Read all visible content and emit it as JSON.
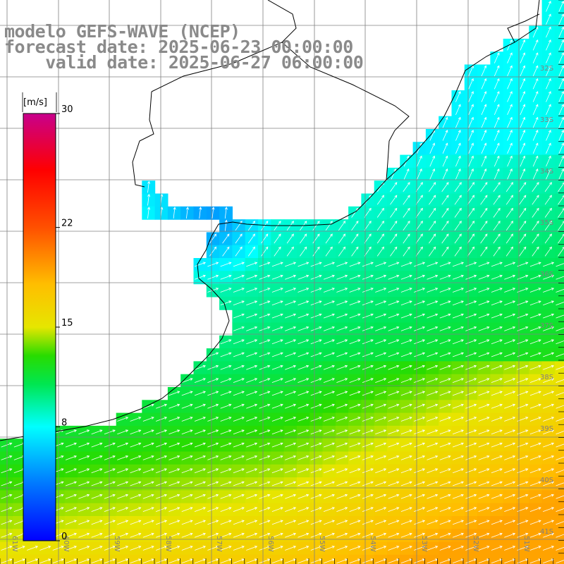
{
  "header": {
    "model_line": "modelo GEFS-WAVE (NCEP)",
    "forecast_line": "forecast date: 2025-06-23 00:00:00",
    "valid_line": "    valid date: 2025-06-27 06:00:00"
  },
  "colorbar": {
    "unit": "[m/s]",
    "ticks": [
      {
        "value": 30,
        "label": "30"
      },
      {
        "value": 22,
        "label": "22"
      },
      {
        "value": 15,
        "label": "15"
      },
      {
        "value": 8,
        "label": "8"
      },
      {
        "value": 0,
        "label": "0"
      }
    ],
    "range": [
      0,
      30
    ]
  },
  "latitude_labels": [
    "32S",
    "33S",
    "34S",
    "35S",
    "36S",
    "37S",
    "38S",
    "39S",
    "40S",
    "41S"
  ],
  "longitude_labels": [
    "61W",
    "60W",
    "59W",
    "58W",
    "57W",
    "56W",
    "55W",
    "54W",
    "53W",
    "52W",
    "51W"
  ],
  "colors": {
    "land": "#ffffff",
    "coast": "#000000",
    "grid": "#808080",
    "arrow": "#ffffff",
    "label": "#808080"
  }
}
